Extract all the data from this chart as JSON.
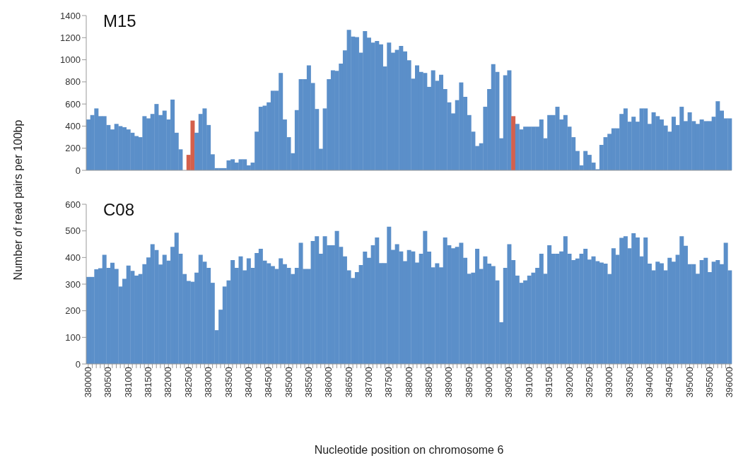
{
  "chart_data": [
    {
      "type": "bar",
      "title": "M15",
      "ylabel": "Number of read pairs per 100bp",
      "tick_labels": "y",
      "ylim": [
        0,
        1400
      ],
      "yticks": [
        0,
        200,
        400,
        600,
        800,
        1000,
        1200,
        1400
      ],
      "categories": [
        "380000",
        null,
        null,
        null,
        null,
        "380500",
        null,
        null,
        null,
        null,
        "381000",
        null,
        null,
        null,
        null,
        "381500",
        null,
        null,
        null,
        null,
        "382000",
        null,
        null,
        null,
        null,
        "382500",
        null,
        null,
        null,
        null,
        "383000",
        null,
        null,
        null,
        null,
        "383500",
        null,
        null,
        null,
        null,
        "384000",
        null,
        null,
        null,
        null,
        "384500",
        null,
        null,
        null,
        null,
        "385000",
        null,
        null,
        null,
        null,
        "385500",
        null,
        null,
        null,
        null,
        "386000",
        null,
        null,
        null,
        null,
        "386500",
        null,
        null,
        null,
        null,
        "387000",
        null,
        null,
        null,
        null,
        "387500",
        null,
        null,
        null,
        null,
        "388000",
        null,
        null,
        null,
        null,
        "388500",
        null,
        null,
        null,
        null,
        "389000",
        null,
        null,
        null,
        null,
        "389500",
        null,
        null,
        null,
        null,
        "390000",
        null,
        null,
        null,
        null,
        "390500",
        null,
        null,
        null,
        null,
        "391000",
        null,
        null,
        null,
        null,
        "391500",
        null,
        null,
        null,
        null,
        "392000",
        null,
        null,
        null,
        null,
        "392500",
        null,
        null,
        null,
        null,
        "393000",
        null,
        null,
        null,
        null,
        "393500",
        null,
        null,
        null,
        null,
        "394000",
        null,
        null,
        null,
        null,
        "394500",
        null,
        null,
        null,
        null,
        "395000",
        null,
        null,
        null,
        null,
        "395500",
        null,
        null,
        null,
        null,
        "396000"
      ],
      "values": [
        460,
        500,
        560,
        490,
        490,
        410,
        370,
        420,
        400,
        390,
        370,
        340,
        310,
        300,
        490,
        470,
        510,
        600,
        500,
        540,
        460,
        640,
        340,
        190,
        0,
        140,
        450,
        340,
        510,
        560,
        410,
        145,
        20,
        20,
        20,
        90,
        100,
        70,
        100,
        100,
        45,
        70,
        350,
        575,
        585,
        615,
        720,
        720,
        880,
        460,
        300,
        155,
        545,
        825,
        825,
        950,
        790,
        555,
        195,
        560,
        825,
        905,
        900,
        965,
        1085,
        1270,
        1210,
        1205,
        1065,
        1260,
        1200,
        1155,
        1170,
        1140,
        940,
        1155,
        1065,
        1090,
        1125,
        1075,
        995,
        830,
        950,
        890,
        880,
        755,
        905,
        810,
        865,
        735,
        615,
        515,
        635,
        795,
        665,
        500,
        350,
        220,
        245,
        575,
        735,
        960,
        890,
        290,
        860,
        905,
        490,
        420,
        370,
        395,
        395,
        395,
        395,
        460,
        290,
        500,
        500,
        575,
        460,
        500,
        395,
        300,
        175,
        45,
        175,
        140,
        70,
        10,
        230,
        300,
        330,
        380,
        380,
        510,
        560,
        440,
        485,
        440,
        560,
        560,
        420,
        525,
        490,
        460,
        405,
        350,
        485,
        410,
        575,
        445,
        525,
        445,
        420,
        460,
        445,
        445,
        485,
        625,
        540,
        470,
        470
      ],
      "colors": [
        "#5b8fc9",
        "#5b8fc9",
        "#5b8fc9",
        "#5b8fc9",
        "#5b8fc9",
        "#5b8fc9",
        "#5b8fc9",
        "#5b8fc9",
        "#5b8fc9",
        "#5b8fc9",
        "#5b8fc9",
        "#5b8fc9",
        "#5b8fc9",
        "#5b8fc9",
        "#5b8fc9",
        "#5b8fc9",
        "#5b8fc9",
        "#5b8fc9",
        "#5b8fc9",
        "#5b8fc9",
        "#5b8fc9",
        "#5b8fc9",
        "#5b8fc9",
        "#5b8fc9",
        "#5b8fc9",
        "#d4604c",
        "#d4604c",
        "#5b8fc9",
        "#5b8fc9",
        "#5b8fc9",
        "#5b8fc9",
        "#5b8fc9",
        "#5b8fc9",
        "#5b8fc9",
        "#5b8fc9",
        "#5b8fc9",
        "#5b8fc9",
        "#5b8fc9",
        "#5b8fc9",
        "#5b8fc9",
        "#5b8fc9",
        "#5b8fc9",
        "#5b8fc9",
        "#5b8fc9",
        "#5b8fc9",
        "#5b8fc9",
        "#5b8fc9",
        "#5b8fc9",
        "#5b8fc9",
        "#5b8fc9",
        "#5b8fc9",
        "#5b8fc9",
        "#5b8fc9",
        "#5b8fc9",
        "#5b8fc9",
        "#5b8fc9",
        "#5b8fc9",
        "#5b8fc9",
        "#5b8fc9",
        "#5b8fc9",
        "#5b8fc9",
        "#5b8fc9",
        "#5b8fc9",
        "#5b8fc9",
        "#5b8fc9",
        "#5b8fc9",
        "#5b8fc9",
        "#5b8fc9",
        "#5b8fc9",
        "#5b8fc9",
        "#5b8fc9",
        "#5b8fc9",
        "#5b8fc9",
        "#5b8fc9",
        "#5b8fc9",
        "#5b8fc9",
        "#5b8fc9",
        "#5b8fc9",
        "#5b8fc9",
        "#5b8fc9",
        "#5b8fc9",
        "#5b8fc9",
        "#5b8fc9",
        "#5b8fc9",
        "#5b8fc9",
        "#5b8fc9",
        "#5b8fc9",
        "#5b8fc9",
        "#5b8fc9",
        "#5b8fc9",
        "#5b8fc9",
        "#5b8fc9",
        "#5b8fc9",
        "#5b8fc9",
        "#5b8fc9",
        "#5b8fc9",
        "#5b8fc9",
        "#5b8fc9",
        "#5b8fc9",
        "#5b8fc9",
        "#5b8fc9",
        "#5b8fc9",
        "#5b8fc9",
        "#5b8fc9",
        "#5b8fc9",
        "#5b8fc9",
        "#d4604c",
        "#5b8fc9",
        "#5b8fc9",
        "#5b8fc9",
        "#5b8fc9",
        "#5b8fc9",
        "#5b8fc9",
        "#5b8fc9",
        "#5b8fc9",
        "#5b8fc9",
        "#5b8fc9",
        "#5b8fc9",
        "#5b8fc9",
        "#5b8fc9",
        "#5b8fc9",
        "#5b8fc9",
        "#5b8fc9",
        "#5b8fc9",
        "#5b8fc9",
        "#5b8fc9",
        "#5b8fc9",
        "#5b8fc9",
        "#5b8fc9",
        "#5b8fc9",
        "#5b8fc9",
        "#5b8fc9",
        "#5b8fc9",
        "#5b8fc9",
        "#5b8fc9",
        "#5b8fc9",
        "#5b8fc9",
        "#5b8fc9",
        "#5b8fc9",
        "#5b8fc9",
        "#5b8fc9",
        "#5b8fc9",
        "#5b8fc9",
        "#5b8fc9",
        "#5b8fc9",
        "#5b8fc9",
        "#5b8fc9",
        "#5b8fc9",
        "#5b8fc9",
        "#5b8fc9",
        "#5b8fc9",
        "#5b8fc9",
        "#5b8fc9",
        "#5b8fc9",
        "#5b8fc9",
        "#5b8fc9",
        "#5b8fc9",
        "#5b8fc9",
        "#5b8fc9",
        "#5b8fc9",
        "#5b8fc9"
      ]
    },
    {
      "type": "bar",
      "title": "C08",
      "xlabel": "Nucleotide position on chromosome 6",
      "ylim": [
        0,
        600
      ],
      "yticks": [
        0,
        100,
        200,
        300,
        400,
        500,
        600
      ],
      "color": "#5b8fc9",
      "categories": [
        "380000",
        null,
        null,
        null,
        null,
        "380500",
        null,
        null,
        null,
        null,
        "381000",
        null,
        null,
        null,
        null,
        "381500",
        null,
        null,
        null,
        null,
        "382000",
        null,
        null,
        null,
        null,
        "382500",
        null,
        null,
        null,
        null,
        "383000",
        null,
        null,
        null,
        null,
        "383500",
        null,
        null,
        null,
        null,
        "384000",
        null,
        null,
        null,
        null,
        "384500",
        null,
        null,
        null,
        null,
        "385000",
        null,
        null,
        null,
        null,
        "385500",
        null,
        null,
        null,
        null,
        "386000",
        null,
        null,
        null,
        null,
        "386500",
        null,
        null,
        null,
        null,
        "387000",
        null,
        null,
        null,
        null,
        "387500",
        null,
        null,
        null,
        null,
        "388000",
        null,
        null,
        null,
        null,
        "388500",
        null,
        null,
        null,
        null,
        "389000",
        null,
        null,
        null,
        null,
        "389500",
        null,
        null,
        null,
        null,
        "390000",
        null,
        null,
        null,
        null,
        "390500",
        null,
        null,
        null,
        null,
        "391000",
        null,
        null,
        null,
        null,
        "391500",
        null,
        null,
        null,
        null,
        "392000",
        null,
        null,
        null,
        null,
        "392500",
        null,
        null,
        null,
        null,
        "393000",
        null,
        null,
        null,
        null,
        "393500",
        null,
        null,
        null,
        null,
        "394000",
        null,
        null,
        null,
        null,
        "394500",
        null,
        null,
        null,
        null,
        "395000",
        null,
        null,
        null,
        null,
        "395500",
        null,
        null,
        null,
        null,
        "396000"
      ],
      "values": [
        327,
        327,
        356,
        360,
        410,
        361,
        380,
        357,
        291,
        320,
        370,
        350,
        332,
        338,
        375,
        400,
        450,
        428,
        374,
        410,
        388,
        440,
        493,
        414,
        338,
        312,
        309,
        343,
        410,
        384,
        361,
        305,
        127,
        204,
        291,
        314,
        390,
        361,
        404,
        352,
        397,
        361,
        417,
        433,
        388,
        378,
        368,
        357,
        397,
        375,
        361,
        338,
        361,
        455,
        357,
        357,
        462,
        480,
        414,
        480,
        446,
        446,
        500,
        440,
        404,
        352,
        323,
        345,
        372,
        422,
        399,
        446,
        475,
        379,
        379,
        516,
        429,
        450,
        423,
        386,
        428,
        423,
        381,
        414,
        500,
        422,
        363,
        378,
        363,
        475,
        446,
        435,
        440,
        455,
        399,
        339,
        343,
        433,
        357,
        404,
        377,
        368,
        314,
        157,
        361,
        450,
        390,
        332,
        305,
        314,
        332,
        343,
        361,
        414,
        339,
        446,
        414,
        414,
        423,
        480,
        414,
        390,
        396,
        414,
        433,
        392,
        404,
        386,
        381,
        377,
        338,
        435,
        410,
        474,
        480,
        435,
        491,
        475,
        404,
        475,
        377,
        352,
        384,
        378,
        352,
        399,
        384,
        410,
        480,
        444,
        375,
        375,
        339,
        390,
        399,
        345,
        384,
        390,
        375,
        455,
        352
      ]
    }
  ]
}
